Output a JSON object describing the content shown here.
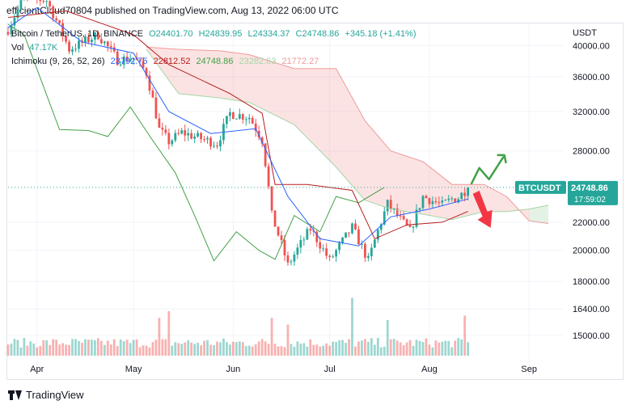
{
  "header": {
    "publish_line": "efficientCloud70804 published on TradingView.com, Aug 13, 2022 06:00 UTC"
  },
  "legend": {
    "symbol": "Bitcoin / TetherUS, 1D, BINANCE",
    "open": "O24401.70",
    "high": "H24839.95",
    "low": "L24334.37",
    "close": "C24748.86",
    "change": "+345.18 (+1.41%)",
    "vol_label": "Vol",
    "vol_value": "47.17K",
    "ichimoku_label": "Ichimoku (9, 26, 52, 26)",
    "ichi_conversion": "23792.75",
    "ichi_base": "22812.52",
    "ichi_lagging": "24748.86",
    "ichi_span_a": "23282.63",
    "ichi_span_b": "21772.27"
  },
  "price_axis": {
    "currency": "USDT",
    "ticks": [
      "40000.00",
      "36000.00",
      "32000.00",
      "28000.00",
      "22000.00",
      "20000.00",
      "18000.00",
      "16400.00",
      "15000.00"
    ],
    "last_label": "BTCUSDT",
    "last_price": "24748.86",
    "countdown": "17:59:02"
  },
  "time_axis": {
    "ticks": [
      "Apr",
      "May",
      "Jun",
      "Jul",
      "Aug",
      "Sep"
    ]
  },
  "footer": {
    "brand": "TradingView"
  },
  "colors": {
    "up": "#26a69a",
    "down": "#ef5350",
    "conversion": "#2962ff",
    "base": "#b71c1c",
    "lagging": "#43a047",
    "span_a": "#a5d6a7",
    "span_b": "#ef9a9a",
    "arrow_up": "#43a047",
    "arrow_down": "#f23645",
    "text_muted": "#131722"
  },
  "chart_data": {
    "type": "candlestick",
    "title": "Bitcoin / TetherUS, 1D, BINANCE",
    "ylabel": "USDT",
    "y_scale": "log",
    "ylim": [
      14000,
      43000
    ],
    "x_range": [
      "2022-03-23",
      "2022-09-10"
    ],
    "x_ticks": [
      {
        "label": "Apr",
        "date": "2022-04-01"
      },
      {
        "label": "May",
        "date": "2022-05-01"
      },
      {
        "label": "Jun",
        "date": "2022-06-01"
      },
      {
        "label": "Jul",
        "date": "2022-07-01"
      },
      {
        "label": "Aug",
        "date": "2022-08-01"
      },
      {
        "label": "Sep",
        "date": "2022-09-01"
      }
    ],
    "y_ticks": [
      40000,
      36000,
      32000,
      28000,
      22000,
      20000,
      18000,
      16400,
      15000
    ],
    "last_price": 24748.86,
    "anchors_close": [
      {
        "date": "2022-03-23",
        "close": 42300
      },
      {
        "date": "2022-03-28",
        "close": 47100
      },
      {
        "date": "2022-04-04",
        "close": 46600
      },
      {
        "date": "2022-04-11",
        "close": 39500
      },
      {
        "date": "2022-04-20",
        "close": 41500
      },
      {
        "date": "2022-04-26",
        "close": 38100
      },
      {
        "date": "2022-05-01",
        "close": 38400
      },
      {
        "date": "2022-05-05",
        "close": 36500
      },
      {
        "date": "2022-05-09",
        "close": 30100
      },
      {
        "date": "2022-05-12",
        "close": 28900
      },
      {
        "date": "2022-05-16",
        "close": 29800
      },
      {
        "date": "2022-05-27",
        "close": 28700
      },
      {
        "date": "2022-05-31",
        "close": 31800
      },
      {
        "date": "2022-06-06",
        "close": 31400
      },
      {
        "date": "2022-06-10",
        "close": 29100
      },
      {
        "date": "2022-06-13",
        "close": 22500
      },
      {
        "date": "2022-06-18",
        "close": 19000
      },
      {
        "date": "2022-06-25",
        "close": 21500
      },
      {
        "date": "2022-07-01",
        "close": 19300
      },
      {
        "date": "2022-07-08",
        "close": 21600
      },
      {
        "date": "2022-07-13",
        "close": 19300
      },
      {
        "date": "2022-07-19",
        "close": 23400
      },
      {
        "date": "2022-07-26",
        "close": 21300
      },
      {
        "date": "2022-07-30",
        "close": 24000
      },
      {
        "date": "2022-08-05",
        "close": 23300
      },
      {
        "date": "2022-08-08",
        "close": 23800
      },
      {
        "date": "2022-08-10",
        "close": 23900
      },
      {
        "date": "2022-08-13",
        "close": 24748.86
      }
    ],
    "ichimoku": {
      "conversion_line": [
        {
          "date": "2022-03-23",
          "value": 42500
        },
        {
          "date": "2022-04-01",
          "value": 45500
        },
        {
          "date": "2022-04-15",
          "value": 40500
        },
        {
          "date": "2022-05-01",
          "value": 39000
        },
        {
          "date": "2022-05-12",
          "value": 32000
        },
        {
          "date": "2022-05-25",
          "value": 29700
        },
        {
          "date": "2022-06-08",
          "value": 30200
        },
        {
          "date": "2022-06-18",
          "value": 24000
        },
        {
          "date": "2022-06-28",
          "value": 20800
        },
        {
          "date": "2022-07-10",
          "value": 20300
        },
        {
          "date": "2022-07-20",
          "value": 22400
        },
        {
          "date": "2022-08-01",
          "value": 23000
        },
        {
          "date": "2022-08-13",
          "value": 23792.75
        }
      ],
      "base_line": [
        {
          "date": "2022-03-23",
          "value": 44000
        },
        {
          "date": "2022-04-10",
          "value": 45000
        },
        {
          "date": "2022-05-01",
          "value": 41500
        },
        {
          "date": "2022-05-12",
          "value": 37500
        },
        {
          "date": "2022-05-31",
          "value": 34000
        },
        {
          "date": "2022-06-10",
          "value": 31800
        },
        {
          "date": "2022-06-14",
          "value": 25000
        },
        {
          "date": "2022-06-24",
          "value": 25000
        },
        {
          "date": "2022-07-08",
          "value": 24500
        },
        {
          "date": "2022-07-15",
          "value": 20800
        },
        {
          "date": "2022-07-25",
          "value": 21800
        },
        {
          "date": "2022-08-05",
          "value": 22000
        },
        {
          "date": "2022-08-13",
          "value": 22812.52
        }
      ],
      "lagging_span": [
        {
          "date": "2022-03-23",
          "value": 43000
        },
        {
          "date": "2022-03-28",
          "value": 41500
        },
        {
          "date": "2022-04-08",
          "value": 30100
        },
        {
          "date": "2022-04-17",
          "value": 30000
        },
        {
          "date": "2022-04-23",
          "value": 29400
        },
        {
          "date": "2022-04-30",
          "value": 32500
        },
        {
          "date": "2022-05-07",
          "value": 29000
        },
        {
          "date": "2022-05-14",
          "value": 26000
        },
        {
          "date": "2022-05-20",
          "value": 22500
        },
        {
          "date": "2022-05-26",
          "value": 19300
        },
        {
          "date": "2022-06-02",
          "value": 21300
        },
        {
          "date": "2022-06-09",
          "value": 20000
        },
        {
          "date": "2022-06-14",
          "value": 19400
        },
        {
          "date": "2022-06-20",
          "value": 22500
        },
        {
          "date": "2022-06-28",
          "value": 21300
        },
        {
          "date": "2022-07-03",
          "value": 24000
        },
        {
          "date": "2022-07-10",
          "value": 23500
        },
        {
          "date": "2022-07-18",
          "value": 24748.86
        }
      ],
      "cloud": [
        {
          "date": "2022-05-05",
          "span_a": 39500,
          "span_b": 39800
        },
        {
          "date": "2022-05-15",
          "span_a": 34000,
          "span_b": 39500
        },
        {
          "date": "2022-05-28",
          "span_a": 33500,
          "span_b": 39300
        },
        {
          "date": "2022-06-06",
          "span_a": 33000,
          "span_b": 38800
        },
        {
          "date": "2022-06-20",
          "span_a": 30600,
          "span_b": 37000
        },
        {
          "date": "2022-07-03",
          "span_a": 26500,
          "span_b": 37000
        },
        {
          "date": "2022-07-12",
          "span_a": 23700,
          "span_b": 31000
        },
        {
          "date": "2022-07-20",
          "span_a": 23000,
          "span_b": 28000
        },
        {
          "date": "2022-07-30",
          "span_a": 22600,
          "span_b": 27000
        },
        {
          "date": "2022-08-08",
          "span_a": 22200,
          "span_b": 25000
        },
        {
          "date": "2022-08-18",
          "span_a": 22800,
          "span_b": 25000
        },
        {
          "date": "2022-08-25",
          "span_a": 22800,
          "span_b": 24000
        },
        {
          "date": "2022-09-01",
          "span_a": 23000,
          "span_b": 22100
        },
        {
          "date": "2022-09-07",
          "span_a": 23300,
          "span_b": 21900
        }
      ]
    },
    "volume": {
      "label": "Vol",
      "last_value": "47.17K",
      "spikes": [
        {
          "date": "2022-05-09",
          "level": 0.85
        },
        {
          "date": "2022-05-12",
          "level": 1.0
        },
        {
          "date": "2022-06-13",
          "level": 0.85
        },
        {
          "date": "2022-06-18",
          "level": 0.7
        },
        {
          "date": "2022-07-08",
          "level": 1.3
        },
        {
          "date": "2022-07-19",
          "level": 0.8
        },
        {
          "date": "2022-08-12",
          "level": 0.9
        }
      ]
    },
    "annotations": [
      {
        "type": "arrow",
        "direction": "up",
        "color": "#43a047"
      },
      {
        "type": "arrow",
        "direction": "down",
        "color": "#f23645"
      }
    ]
  }
}
